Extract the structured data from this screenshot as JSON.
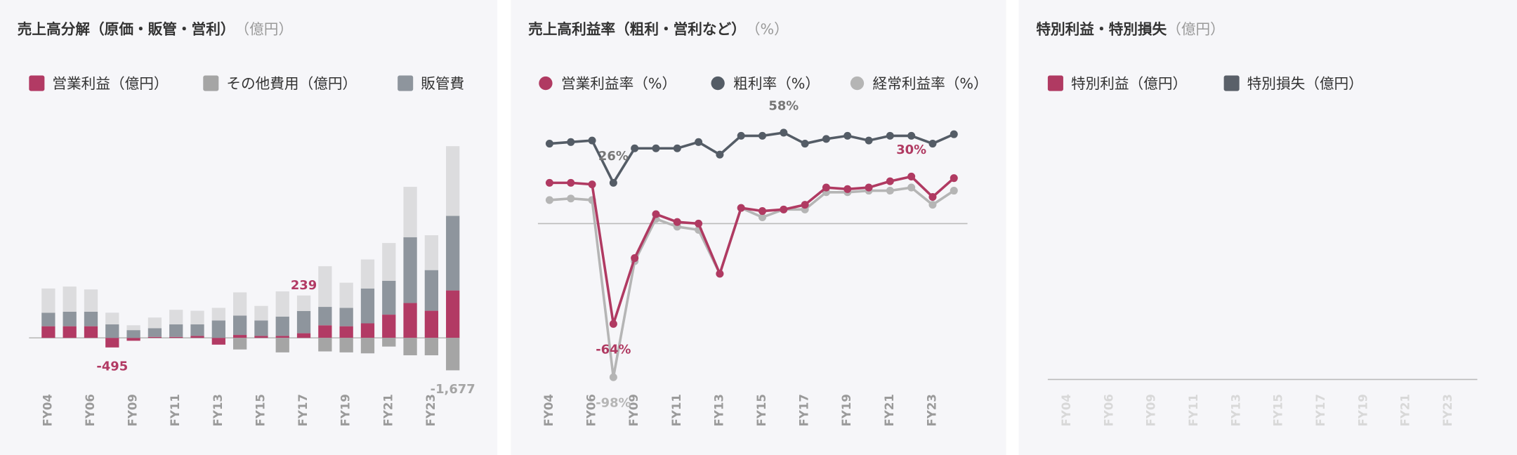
{
  "chart_data": [
    {
      "type": "bar",
      "stacked": true,
      "title": "売上高分解（原価・販管・営利）",
      "subtitle": "（億円）",
      "categories": [
        "FY04",
        null,
        "FY06",
        null,
        "FY09",
        null,
        "FY11",
        null,
        "FY13",
        null,
        "FY15",
        null,
        "FY17",
        null,
        "FY19",
        null,
        "FY21",
        null,
        "FY23",
        null
      ],
      "ylim": [
        -2500,
        10000
      ],
      "series": [
        {
          "name": "営業利益（億円）",
          "color": "#b23a64",
          "values": [
            600,
            600,
            600,
            -495,
            -150,
            50,
            50,
            100,
            -350,
            150,
            100,
            100,
            239,
            650,
            600,
            750,
            1200,
            1800,
            1400,
            2450
          ],
          "value_labels": [
            null,
            null,
            null,
            "-495",
            null,
            null,
            null,
            null,
            null,
            null,
            null,
            null,
            "239",
            null,
            null,
            null,
            null,
            null,
            null,
            null
          ]
        },
        {
          "name": "その他費用（億円）",
          "color": "#a5a5a5",
          "values": [
            0,
            0,
            0,
            0,
            0,
            0,
            0,
            0,
            0,
            -600,
            0,
            -750,
            0,
            -700,
            -750,
            -800,
            -450,
            -900,
            -900,
            -1677
          ],
          "value_labels": [
            null,
            null,
            null,
            null,
            null,
            null,
            null,
            null,
            null,
            null,
            null,
            null,
            null,
            null,
            null,
            null,
            null,
            null,
            null,
            "-1,677"
          ]
        },
        {
          "name": "販管費",
          "color": "#8e959d",
          "values": [
            700,
            750,
            750,
            700,
            400,
            450,
            650,
            600,
            900,
            1000,
            800,
            1000,
            1150,
            950,
            950,
            1800,
            1750,
            3400,
            2100,
            3850
          ]
        },
        {
          "color": "#dcdcde",
          "values": [
            1250,
            1300,
            1150,
            600,
            250,
            550,
            750,
            700,
            650,
            1200,
            750,
            1300,
            800,
            2100,
            1300,
            1500,
            1950,
            2600,
            1800,
            3600
          ]
        }
      ]
    },
    {
      "type": "line",
      "title": "売上高利益率（粗利・営利など）",
      "subtitle": "（%）",
      "categories": [
        "FY04",
        null,
        "FY06",
        null,
        "FY09",
        null,
        "FY11",
        null,
        "FY13",
        null,
        "FY15",
        null,
        "FY17",
        null,
        "FY19",
        null,
        "FY21",
        null,
        "FY23",
        null
      ],
      "ylim": [
        -105,
        70
      ],
      "series": [
        {
          "name": "営業利益率（%）",
          "color": "#b03a62",
          "values": [
            26,
            26,
            25,
            -64,
            -22,
            6,
            1,
            0,
            -32,
            10,
            8,
            9,
            12,
            23,
            22,
            23,
            27,
            30,
            17,
            29
          ],
          "value_labels": [
            null,
            null,
            null,
            "-64%",
            null,
            null,
            null,
            null,
            null,
            null,
            null,
            null,
            null,
            null,
            null,
            null,
            null,
            "30%",
            null,
            null
          ]
        },
        {
          "name": "粗利率（%）",
          "color": "#545c66",
          "values": [
            51,
            52,
            53,
            26,
            48,
            48,
            48,
            52,
            44,
            56,
            56,
            58,
            51,
            54,
            56,
            53,
            56,
            56,
            51,
            57
          ],
          "value_labels": [
            null,
            null,
            null,
            "26%",
            null,
            null,
            null,
            null,
            null,
            null,
            null,
            "58%",
            null,
            null,
            null,
            null,
            null,
            null,
            null,
            null
          ]
        },
        {
          "name": "経常利益率（%）",
          "color": "#b5b5b5",
          "values": [
            15,
            16,
            15,
            -98,
            -24,
            3,
            -2,
            -4,
            -32,
            10,
            4,
            9,
            9,
            20,
            20,
            21,
            21,
            23,
            12,
            21
          ],
          "value_labels": [
            null,
            null,
            null,
            "-98%",
            null,
            null,
            null,
            null,
            null,
            null,
            null,
            null,
            null,
            null,
            null,
            null,
            null,
            null,
            null,
            null
          ]
        }
      ]
    },
    {
      "type": "bar",
      "stacked": true,
      "title": "特別利益・特別損失",
      "subtitle": "（億円）",
      "categories": [
        "FY04",
        null,
        "FY06",
        null,
        "FY09",
        null,
        "FY11",
        null,
        "FY13",
        null,
        "FY15",
        null,
        "FY17",
        null,
        "FY19",
        null,
        "FY21",
        null,
        "FY23",
        null
      ],
      "series": [
        {
          "name": "特別利益（億円）",
          "color": "#b03a62",
          "values": [
            null,
            null,
            null,
            null,
            null,
            null,
            null,
            null,
            null,
            null,
            null,
            null,
            null,
            null,
            null,
            null,
            null,
            null,
            null,
            null
          ]
        },
        {
          "name": "特別損失（億円）",
          "color": "#5a6069",
          "values": [
            null,
            null,
            null,
            null,
            null,
            null,
            null,
            null,
            null,
            null,
            null,
            null,
            null,
            null,
            null,
            null,
            null,
            null,
            null,
            null
          ]
        }
      ]
    }
  ]
}
